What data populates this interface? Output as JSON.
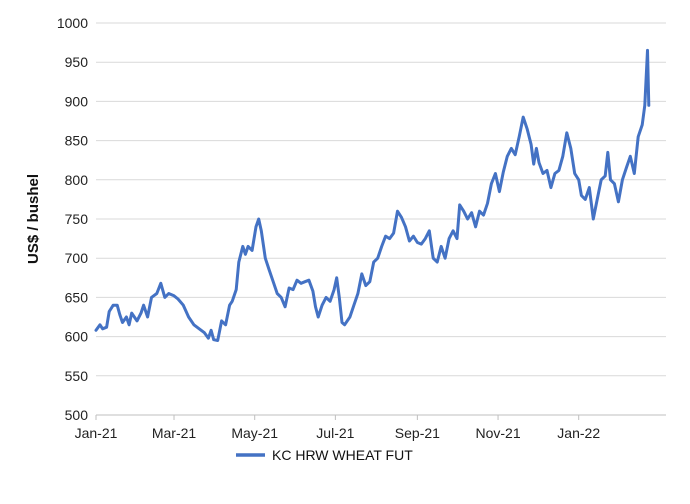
{
  "chart_data": {
    "type": "line",
    "title": "",
    "xlabel": "",
    "ylabel": "US$ / bushel",
    "ylim": [
      500,
      1000
    ],
    "yticks": [
      500,
      550,
      600,
      650,
      700,
      750,
      800,
      850,
      900,
      950,
      1000
    ],
    "xlim": [
      "2021-01-01",
      "2022-03-08"
    ],
    "xticks": [
      {
        "date": "2021-01-01",
        "label": "Jan-21"
      },
      {
        "date": "2021-03-01",
        "label": "Mar-21"
      },
      {
        "date": "2021-05-01",
        "label": "May-21"
      },
      {
        "date": "2021-07-01",
        "label": "Jul-21"
      },
      {
        "date": "2021-09-01",
        "label": "Sep-21"
      },
      {
        "date": "2021-11-01",
        "label": "Nov-21"
      },
      {
        "date": "2022-01-01",
        "label": "Jan-22"
      }
    ],
    "grid": true,
    "legend_position": "bottom",
    "series": [
      {
        "name": "KC HRW WHEAT FUT",
        "color": "#4472c4",
        "points": [
          [
            "2021-01-01",
            608
          ],
          [
            "2021-01-04",
            615
          ],
          [
            "2021-01-06",
            610
          ],
          [
            "2021-01-09",
            612
          ],
          [
            "2021-01-11",
            632
          ],
          [
            "2021-01-14",
            640
          ],
          [
            "2021-01-17",
            640
          ],
          [
            "2021-01-19",
            628
          ],
          [
            "2021-01-21",
            618
          ],
          [
            "2021-01-24",
            625
          ],
          [
            "2021-01-26",
            615
          ],
          [
            "2021-01-28",
            630
          ],
          [
            "2021-02-01",
            620
          ],
          [
            "2021-02-04",
            630
          ],
          [
            "2021-02-06",
            640
          ],
          [
            "2021-02-09",
            625
          ],
          [
            "2021-02-12",
            650
          ],
          [
            "2021-02-16",
            655
          ],
          [
            "2021-02-19",
            668
          ],
          [
            "2021-02-22",
            650
          ],
          [
            "2021-02-25",
            655
          ],
          [
            "2021-03-01",
            652
          ],
          [
            "2021-03-04",
            648
          ],
          [
            "2021-03-08",
            640
          ],
          [
            "2021-03-12",
            625
          ],
          [
            "2021-03-16",
            615
          ],
          [
            "2021-03-20",
            610
          ],
          [
            "2021-03-24",
            605
          ],
          [
            "2021-03-27",
            598
          ],
          [
            "2021-03-29",
            608
          ],
          [
            "2021-03-31",
            596
          ],
          [
            "2021-04-03",
            595
          ],
          [
            "2021-04-06",
            620
          ],
          [
            "2021-04-09",
            615
          ],
          [
            "2021-04-12",
            640
          ],
          [
            "2021-04-14",
            645
          ],
          [
            "2021-04-17",
            660
          ],
          [
            "2021-04-19",
            695
          ],
          [
            "2021-04-22",
            715
          ],
          [
            "2021-04-24",
            705
          ],
          [
            "2021-04-26",
            715
          ],
          [
            "2021-04-29",
            710
          ],
          [
            "2021-05-02",
            740
          ],
          [
            "2021-05-04",
            750
          ],
          [
            "2021-05-06",
            735
          ],
          [
            "2021-05-09",
            700
          ],
          [
            "2021-05-12",
            685
          ],
          [
            "2021-05-15",
            670
          ],
          [
            "2021-05-18",
            655
          ],
          [
            "2021-05-21",
            650
          ],
          [
            "2021-05-24",
            638
          ],
          [
            "2021-05-27",
            662
          ],
          [
            "2021-05-30",
            660
          ],
          [
            "2021-06-02",
            672
          ],
          [
            "2021-06-05",
            668
          ],
          [
            "2021-06-08",
            670
          ],
          [
            "2021-06-11",
            672
          ],
          [
            "2021-06-14",
            658
          ],
          [
            "2021-06-16",
            638
          ],
          [
            "2021-06-18",
            625
          ],
          [
            "2021-06-21",
            640
          ],
          [
            "2021-06-24",
            650
          ],
          [
            "2021-06-27",
            645
          ],
          [
            "2021-06-30",
            660
          ],
          [
            "2021-07-02",
            675
          ],
          [
            "2021-07-04",
            650
          ],
          [
            "2021-07-06",
            618
          ],
          [
            "2021-07-08",
            615
          ],
          [
            "2021-07-12",
            625
          ],
          [
            "2021-07-15",
            640
          ],
          [
            "2021-07-18",
            655
          ],
          [
            "2021-07-21",
            680
          ],
          [
            "2021-07-24",
            665
          ],
          [
            "2021-07-27",
            670
          ],
          [
            "2021-07-30",
            695
          ],
          [
            "2021-08-02",
            700
          ],
          [
            "2021-08-05",
            715
          ],
          [
            "2021-08-08",
            728
          ],
          [
            "2021-08-11",
            725
          ],
          [
            "2021-08-14",
            732
          ],
          [
            "2021-08-17",
            760
          ],
          [
            "2021-08-20",
            752
          ],
          [
            "2021-08-23",
            740
          ],
          [
            "2021-08-26",
            722
          ],
          [
            "2021-08-29",
            728
          ],
          [
            "2021-09-01",
            720
          ],
          [
            "2021-09-04",
            718
          ],
          [
            "2021-09-07",
            725
          ],
          [
            "2021-09-10",
            735
          ],
          [
            "2021-09-13",
            700
          ],
          [
            "2021-09-16",
            695
          ],
          [
            "2021-09-19",
            715
          ],
          [
            "2021-09-22",
            700
          ],
          [
            "2021-09-25",
            725
          ],
          [
            "2021-09-28",
            735
          ],
          [
            "2021-10-01",
            725
          ],
          [
            "2021-10-03",
            768
          ],
          [
            "2021-10-06",
            760
          ],
          [
            "2021-10-09",
            750
          ],
          [
            "2021-10-12",
            758
          ],
          [
            "2021-10-15",
            740
          ],
          [
            "2021-10-18",
            760
          ],
          [
            "2021-10-21",
            755
          ],
          [
            "2021-10-24",
            770
          ],
          [
            "2021-10-27",
            795
          ],
          [
            "2021-10-30",
            808
          ],
          [
            "2021-11-02",
            785
          ],
          [
            "2021-11-05",
            810
          ],
          [
            "2021-11-08",
            830
          ],
          [
            "2021-11-11",
            840
          ],
          [
            "2021-11-14",
            832
          ],
          [
            "2021-11-17",
            855
          ],
          [
            "2021-11-20",
            880
          ],
          [
            "2021-11-23",
            865
          ],
          [
            "2021-11-26",
            845
          ],
          [
            "2021-11-28",
            820
          ],
          [
            "2021-11-30",
            840
          ],
          [
            "2021-12-02",
            822
          ],
          [
            "2021-12-05",
            808
          ],
          [
            "2021-12-08",
            812
          ],
          [
            "2021-12-11",
            790
          ],
          [
            "2021-12-14",
            808
          ],
          [
            "2021-12-17",
            812
          ],
          [
            "2021-12-20",
            830
          ],
          [
            "2021-12-23",
            860
          ],
          [
            "2021-12-26",
            840
          ],
          [
            "2021-12-29",
            808
          ],
          [
            "2022-01-01",
            800
          ],
          [
            "2022-01-03",
            780
          ],
          [
            "2022-01-06",
            775
          ],
          [
            "2022-01-09",
            790
          ],
          [
            "2022-01-12",
            750
          ],
          [
            "2022-01-15",
            775
          ],
          [
            "2022-01-18",
            800
          ],
          [
            "2022-01-21",
            805
          ],
          [
            "2022-01-23",
            835
          ],
          [
            "2022-01-25",
            800
          ],
          [
            "2022-01-28",
            795
          ],
          [
            "2022-01-31",
            772
          ],
          [
            "2022-02-03",
            800
          ],
          [
            "2022-02-06",
            815
          ],
          [
            "2022-02-09",
            830
          ],
          [
            "2022-02-12",
            808
          ],
          [
            "2022-02-15",
            855
          ],
          [
            "2022-02-18",
            870
          ],
          [
            "2022-02-20",
            895
          ],
          [
            "2022-02-22",
            965
          ],
          [
            "2022-02-23",
            895
          ]
        ]
      }
    ]
  }
}
